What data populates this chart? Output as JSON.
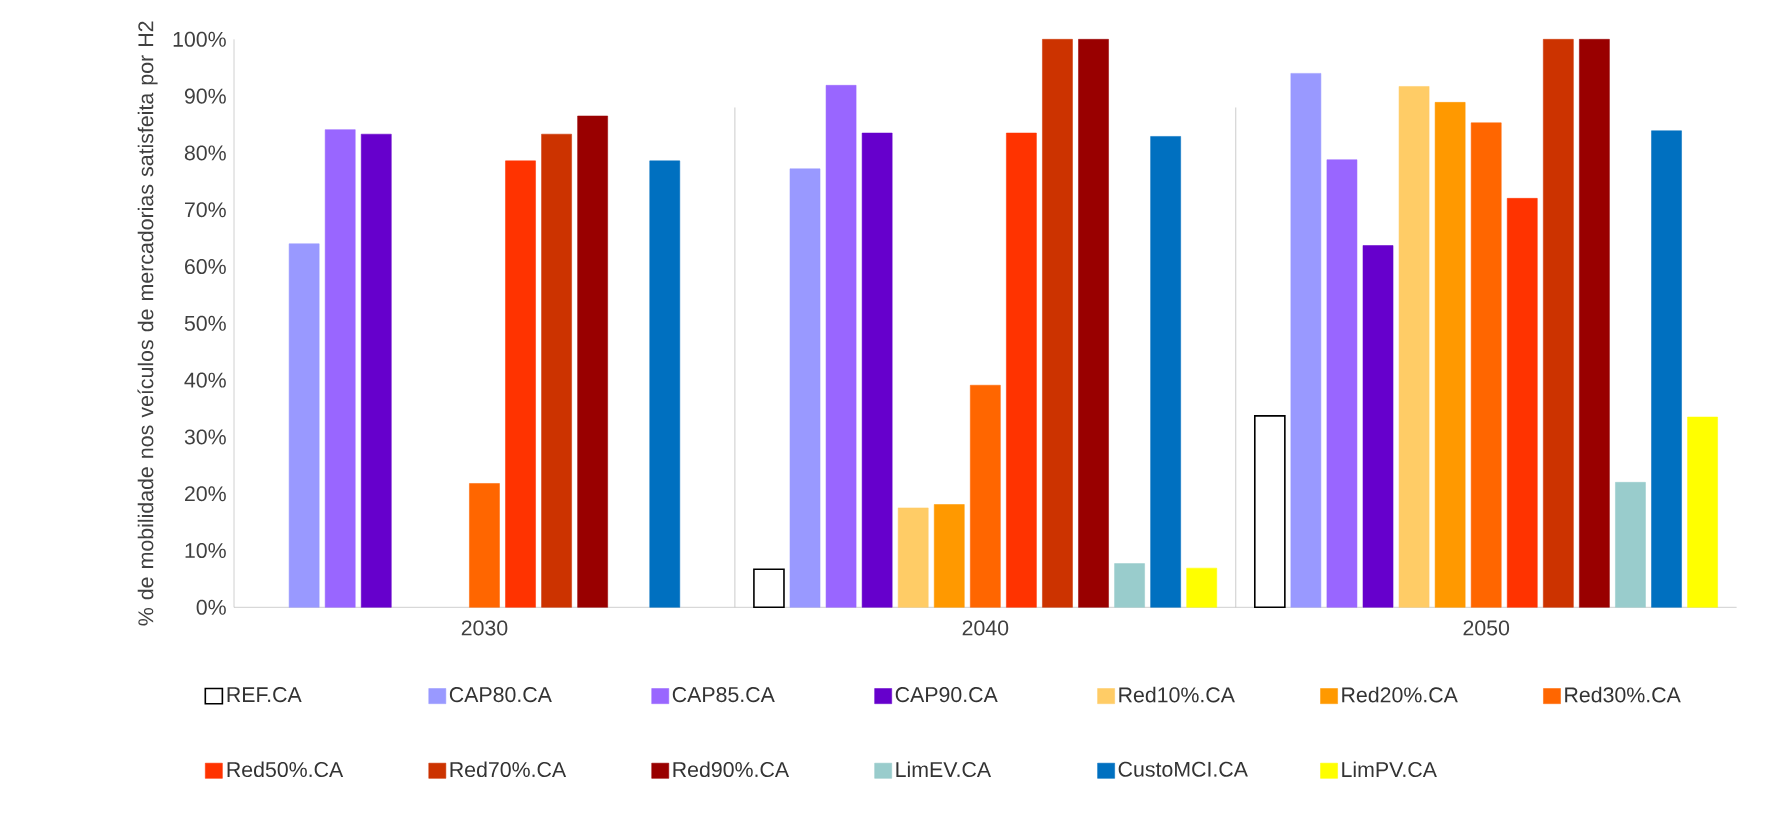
{
  "chart_data": {
    "type": "bar",
    "ylabel": "% de mobilidade nos veículos de mercadorias satisfeita por H2",
    "categories": [
      "2030",
      "2040",
      "2050"
    ],
    "ylim": [
      0,
      100
    ],
    "yticks": [
      {
        "value": 0,
        "label": "0%"
      },
      {
        "value": 10,
        "label": "10%"
      },
      {
        "value": 20,
        "label": "20%"
      },
      {
        "value": 30,
        "label": "30%"
      },
      {
        "value": 40,
        "label": "40%"
      },
      {
        "value": 50,
        "label": "50%"
      },
      {
        "value": 60,
        "label": "60%"
      },
      {
        "value": 70,
        "label": "70%"
      },
      {
        "value": 80,
        "label": "80%"
      },
      {
        "value": 90,
        "label": "90%"
      },
      {
        "value": 100,
        "label": "100%"
      }
    ],
    "legend": "bottom",
    "grid": false,
    "series": [
      {
        "name": "REF.CA",
        "color": "#ffffff",
        "values": [
          null,
          6.7,
          33.7
        ]
      },
      {
        "name": "CAP80.CA",
        "color": "#9999ff",
        "values": [
          64,
          77.2,
          94
        ]
      },
      {
        "name": "CAP85.CA",
        "color": "#9966ff",
        "values": [
          84.1,
          91.9,
          78.8
        ]
      },
      {
        "name": "CAP90.CA",
        "color": "#6600cc",
        "values": [
          83.3,
          83.5,
          63.7
        ]
      },
      {
        "name": "Red10%.CA",
        "color": "#ffcc66",
        "values": [
          null,
          17.5,
          91.7
        ]
      },
      {
        "name": "Red20%.CA",
        "color": "#ff9900",
        "values": [
          null,
          18.1,
          88.9
        ]
      },
      {
        "name": "Red30%.CA",
        "color": "#ff6600",
        "values": [
          21.8,
          39.1,
          85.3
        ]
      },
      {
        "name": "Red50%.CA",
        "color": "#ff3300",
        "values": [
          78.6,
          83.5,
          72
        ]
      },
      {
        "name": "Red70%.CA",
        "color": "#cc3300",
        "values": [
          83.3,
          100,
          100
        ]
      },
      {
        "name": "Red90%.CA",
        "color": "#990000",
        "values": [
          86.5,
          100,
          100
        ]
      },
      {
        "name": "LimEV.CA",
        "color": "#99cccc",
        "values": [
          null,
          7.7,
          22
        ]
      },
      {
        "name": "CustoMCI.CA",
        "color": "#0070c0",
        "values": [
          78.6,
          82.9,
          83.9
        ]
      },
      {
        "name": "LimPV.CA",
        "color": "#ffff00",
        "values": [
          null,
          6.9,
          33.5
        ]
      }
    ]
  }
}
